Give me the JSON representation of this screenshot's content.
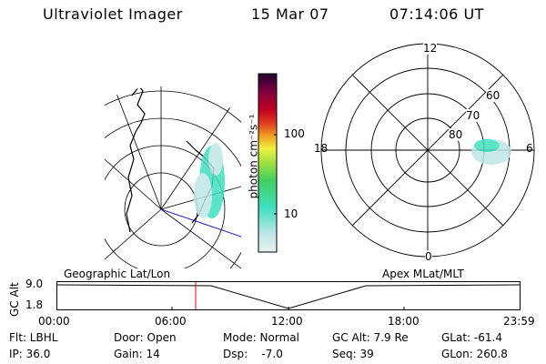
{
  "header": {
    "instrument": "Ultraviolet Imager",
    "date": "15 Mar 07",
    "time": "07:14:06 UT"
  },
  "colorbar": {
    "label": "photon cm⁻²s⁻¹",
    "ticks": [
      "100",
      "10"
    ]
  },
  "polar_plot": {
    "mlt_labels": {
      "top": "12",
      "left": "18",
      "right": "6",
      "bottom": "0"
    },
    "lat_labels": [
      "60",
      "70",
      "80"
    ]
  },
  "timeline": {
    "left_title": "Geographic Lat/Lon",
    "right_title": "Apex MLat/MLT",
    "ylabel": "GC Alt",
    "y_top": "9.0",
    "y_bottom": "1.8",
    "time_ticks": [
      "00:00",
      "06:00",
      "12:00",
      "18:00",
      "23:59"
    ],
    "cursor_time_fraction": 0.3
  },
  "status": {
    "row1": {
      "filter": "Flt: LBHL",
      "door": "Door: Open",
      "mode": "Mode: Normal",
      "gc_alt": "GC Alt: 7.9 Re",
      "glat": "GLat: -61.4"
    },
    "row2": {
      "ip": "IP: 36.0",
      "gain": "Gain: 14",
      "dsp": "Dsp:    -7.0",
      "seq": "Seq: 39",
      "glon": "GLon: 260.8"
    }
  },
  "colors": {
    "colorbar_stops": [
      "#e6f0f0",
      "#bfe6e6",
      "#40e0c0",
      "#40d060",
      "#a0e040",
      "#f0f040",
      "#f0a020",
      "#e04020",
      "#c00020",
      "#800040",
      "#200030"
    ],
    "aurora": "#40e0c0",
    "cursor": "#e00000"
  }
}
